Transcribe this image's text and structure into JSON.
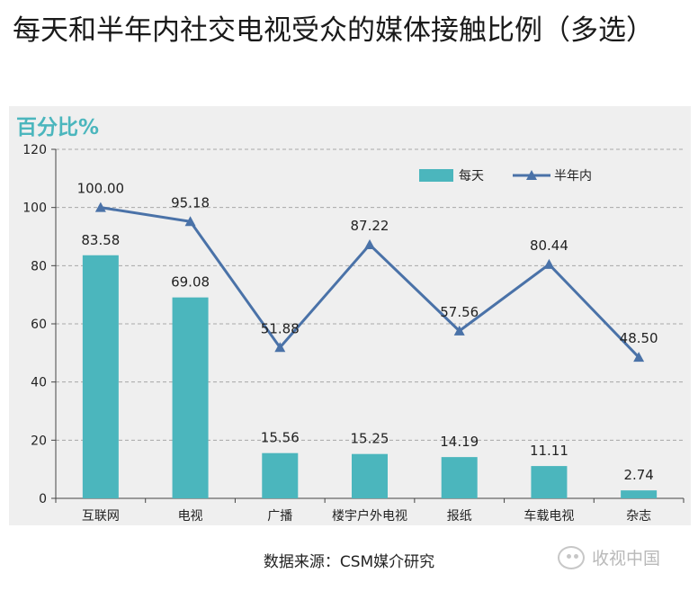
{
  "title": "每天和半年内社交电视受众的媒体接触比例（多选）",
  "source": "数据来源：CSM媒介研究",
  "watermark": "收视中国",
  "chart_data": {
    "type": "bar",
    "ylabel": "百分比%",
    "ylim": [
      0,
      120
    ],
    "yticks": [
      0,
      20,
      40,
      60,
      80,
      100,
      120
    ],
    "grid": true,
    "legend_position": "top-right",
    "categories": [
      "互联网",
      "电视",
      "广播",
      "楼宇户外电视",
      "报纸",
      "车载电视",
      "杂志"
    ],
    "series": [
      {
        "name": "每天",
        "type": "bar",
        "color": "#4bb6bd",
        "values": [
          83.58,
          69.08,
          15.56,
          15.25,
          14.19,
          11.11,
          2.74
        ],
        "labels": [
          "83.58",
          "69.08",
          "15.56",
          "15.25",
          "14.19",
          "11.11",
          "2.74"
        ]
      },
      {
        "name": "半年内",
        "type": "line",
        "color": "#4a72a8",
        "values": [
          100.0,
          95.18,
          51.88,
          87.22,
          57.56,
          80.44,
          48.5
        ],
        "labels": [
          "100.00",
          "95.18",
          "51.88",
          "87.22",
          "57.56",
          "80.44",
          "48.50"
        ]
      }
    ]
  }
}
